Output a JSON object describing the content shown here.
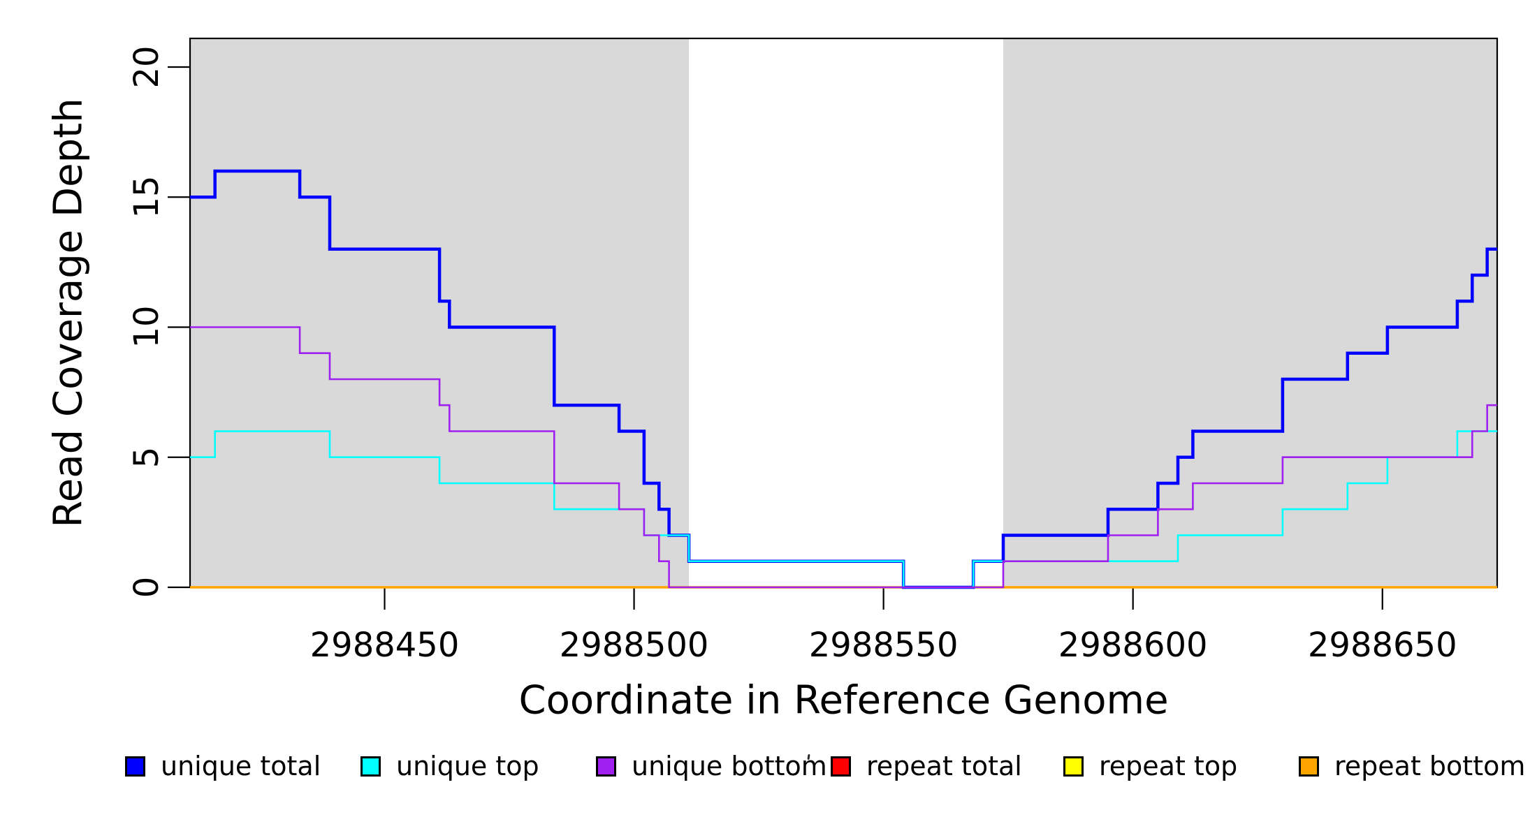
{
  "chart_data": {
    "type": "line",
    "subtype": "step-after",
    "title": "",
    "xlabel": "Coordinate in Reference Genome",
    "ylabel": "Read Coverage Depth",
    "xlim": [
      2988411,
      2988673
    ],
    "ylim": [
      0,
      21.1
    ],
    "grid": false,
    "x_tick_values": [
      2988450,
      2988500,
      2988550,
      2988600,
      2988650
    ],
    "x_tick_labels": [
      "2988450",
      "2988500",
      "2988550",
      "2988600",
      "2988650"
    ],
    "y_tick_values": [
      0,
      5,
      10,
      15,
      20
    ],
    "y_tick_labels": [
      "0",
      "5",
      "10",
      "15",
      "20"
    ],
    "shaded_regions": [
      {
        "x0": 2988411,
        "x1": 2988511,
        "color": "#d9d9d9"
      },
      {
        "x0": 2988574,
        "x1": 2988673,
        "color": "#d9d9d9"
      }
    ],
    "series": [
      {
        "name": "repeat total",
        "color": "#ff0000",
        "width": 2.5,
        "points": [
          [
            2988411,
            0
          ]
        ]
      },
      {
        "name": "repeat top",
        "color": "#ffff00",
        "width": 3,
        "points": [
          [
            2988411,
            0
          ]
        ]
      },
      {
        "name": "repeat bottom",
        "color": "#ffa500",
        "width": 3.5,
        "points": [
          [
            2988411,
            0
          ]
        ]
      },
      {
        "name": "unique total",
        "color": "#0000ff",
        "width": 4.5,
        "points": [
          [
            2988411,
            15
          ],
          [
            2988416,
            16
          ],
          [
            2988433,
            15
          ],
          [
            2988439,
            13
          ],
          [
            2988461,
            11
          ],
          [
            2988463,
            10
          ],
          [
            2988484,
            7
          ],
          [
            2988497,
            6
          ],
          [
            2988502,
            4
          ],
          [
            2988505,
            3
          ],
          [
            2988507,
            2
          ],
          [
            2988511,
            1
          ],
          [
            2988554,
            0
          ],
          [
            2988568,
            1
          ],
          [
            2988574,
            2
          ],
          [
            2988595,
            3
          ],
          [
            2988605,
            4
          ],
          [
            2988609,
            5
          ],
          [
            2988612,
            6
          ],
          [
            2988630,
            8
          ],
          [
            2988643,
            9
          ],
          [
            2988651,
            10
          ],
          [
            2988665,
            11
          ],
          [
            2988668,
            12
          ],
          [
            2988671,
            13
          ]
        ]
      },
      {
        "name": "unique top",
        "color": "#00ffff",
        "width": 2.6,
        "points": [
          [
            2988411,
            5
          ],
          [
            2988416,
            6
          ],
          [
            2988439,
            5
          ],
          [
            2988461,
            4
          ],
          [
            2988484,
            3
          ],
          [
            2988502,
            2
          ],
          [
            2988511,
            1
          ],
          [
            2988554,
            0
          ],
          [
            2988568,
            1
          ],
          [
            2988609,
            2
          ],
          [
            2988630,
            3
          ],
          [
            2988643,
            4
          ],
          [
            2988651,
            5
          ],
          [
            2988665,
            6
          ]
        ]
      },
      {
        "name": "unique bottom",
        "color": "#a020f0",
        "width": 2.6,
        "points": [
          [
            2988411,
            10
          ],
          [
            2988433,
            9
          ],
          [
            2988439,
            8
          ],
          [
            2988461,
            7
          ],
          [
            2988463,
            6
          ],
          [
            2988484,
            4
          ],
          [
            2988497,
            3
          ],
          [
            2988502,
            2
          ],
          [
            2988505,
            1
          ],
          [
            2988507,
            0
          ],
          [
            2988574,
            1
          ],
          [
            2988595,
            2
          ],
          [
            2988605,
            3
          ],
          [
            2988612,
            4
          ],
          [
            2988630,
            5
          ],
          [
            2988668,
            6
          ],
          [
            2988671,
            7
          ]
        ]
      }
    ],
    "axis_color": "#000000",
    "plot_bg": "#ffffff"
  },
  "legend": {
    "items": [
      {
        "label": "unique total",
        "color": "#0000ff"
      },
      {
        "label": "unique top",
        "color": "#00ffff"
      },
      {
        "label": "unique bottom",
        "color": "#a020f0"
      },
      {
        "label": "repeat total",
        "color": "#ff0000"
      },
      {
        "label": "repeat top",
        "color": "#ffff00"
      },
      {
        "label": "repeat bottom",
        "color": "#ffa500"
      }
    ]
  },
  "annotations": {
    "stray_mark": {
      "present": true
    }
  }
}
